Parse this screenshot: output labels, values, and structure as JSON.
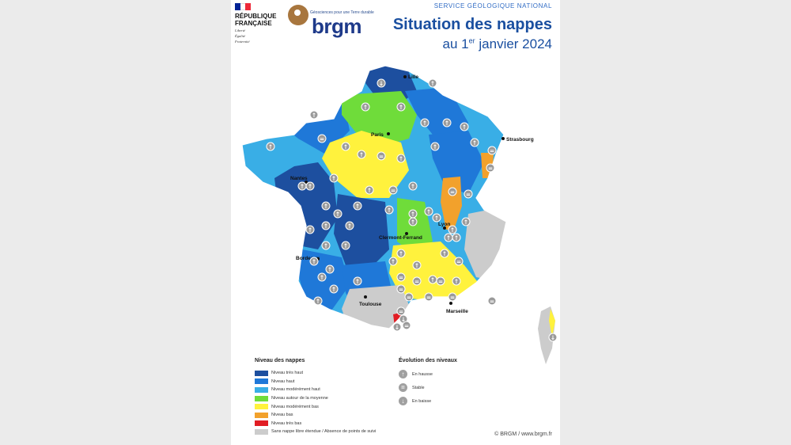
{
  "header": {
    "republique": [
      "RÉPUBLIQUE",
      "FRANÇAISE"
    ],
    "motto": [
      "Liberté",
      "Égalité",
      "Fraternité"
    ],
    "brgm_tagline": "Géosciences pour une Terre durable",
    "brgm_word": "brgm",
    "service": "SERVICE GÉOLOGIQUE NATIONAL",
    "title": "Situation des nappes",
    "subtitle_pre": "au 1",
    "subtitle_sup": "er",
    "subtitle_post": " janvier 2024"
  },
  "colors": {
    "tres_haut": "#1d4f9f",
    "haut": "#1f78d8",
    "moderement_haut": "#39aee6",
    "moyenne": "#6fdc3a",
    "moderement_bas": "#fff23d",
    "bas": "#f2a12c",
    "tres_bas": "#e11d24",
    "sans_nappe": "#cccccc",
    "flag_blue": "#002395",
    "flag_red": "#ed2939",
    "brgm_brown": "#a8763e"
  },
  "map": {
    "cities": [
      "Lille",
      "Paris",
      "Strasbourg",
      "Nantes",
      "Lyon",
      "Clermont-Ferrand",
      "Bordeaux",
      "Toulouse",
      "Marseille"
    ]
  },
  "legend": {
    "title": "Niveau des nappes",
    "items": [
      {
        "label": "Niveau très haut",
        "color": "#1d4f9f"
      },
      {
        "label": "Niveau haut",
        "color": "#1f78d8"
      },
      {
        "label": "Niveau modérément haut",
        "color": "#39aee6"
      },
      {
        "label": "Niveau autour de la moyenne",
        "color": "#6fdc3a"
      },
      {
        "label": "Niveau modérément bas",
        "color": "#fff23d"
      },
      {
        "label": "Niveau bas",
        "color": "#f2a12c"
      },
      {
        "label": "Niveau très bas",
        "color": "#e11d24"
      },
      {
        "label": "Sans nappe libre étendue / Absence de points de suivi",
        "color": "#cccccc"
      }
    ]
  },
  "evolution": {
    "title": "Évolution des niveaux",
    "items": [
      {
        "label": "En hausse",
        "icon": "arrow-up-icon",
        "glyph": "↑"
      },
      {
        "label": "Stable",
        "icon": "equals-icon",
        "glyph": "="
      },
      {
        "label": "En baisse",
        "icon": "arrow-down-icon",
        "glyph": "↓"
      }
    ]
  },
  "footer": {
    "copyright": "© BRGM / www.brgm.fr"
  }
}
